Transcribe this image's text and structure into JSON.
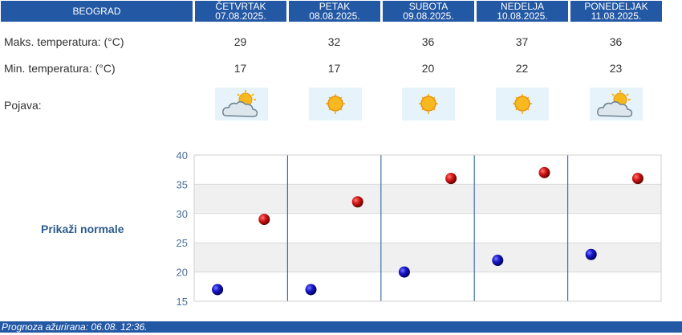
{
  "header": {
    "city": "BEOGRAD",
    "days": [
      {
        "day": "ČETVRTAK",
        "date": "07.08.2025."
      },
      {
        "day": "PETAK",
        "date": "08.08.2025."
      },
      {
        "day": "SUBOTA",
        "date": "09.08.2025."
      },
      {
        "day": "NEDELJA",
        "date": "10.08.2025."
      },
      {
        "day": "PONEDELJAK",
        "date": "11.08.2025."
      }
    ]
  },
  "rows": {
    "max_label": "Maks. temperatura: (°C)",
    "min_label": "Min. temperatura: (°C)",
    "phen_label": "Pojava:",
    "max_values": [
      "29",
      "32",
      "36",
      "37",
      "36"
    ],
    "min_values": [
      "17",
      "17",
      "20",
      "22",
      "23"
    ],
    "icons": [
      "partly-cloudy-icon",
      "sun-icon",
      "sun-icon",
      "sun-icon",
      "partly-cloudy-icon"
    ]
  },
  "normale_link": "Prikaži normale",
  "footer": "Prognoza ažurirana:  06.08. 12:36.",
  "colors": {
    "header_bg": "#2358a5",
    "max_point": "#c0101a",
    "min_point": "#1010a8",
    "band": "#f0f0f0"
  },
  "chart_data": {
    "type": "scatter",
    "categories": [
      "ČETVRTAK",
      "PETAK",
      "SUBOTA",
      "NEDELJA",
      "PONEDELJAK"
    ],
    "series": [
      {
        "values": [
          17,
          17,
          20,
          22,
          23
        ]
      },
      {
        "values": [
          29,
          32,
          36,
          37,
          36
        ]
      }
    ],
    "ylim": [
      15,
      40
    ],
    "yticks": [
      "40",
      "35",
      "30",
      "25",
      "20",
      "15"
    ],
    "grid": true,
    "legend": "none"
  }
}
